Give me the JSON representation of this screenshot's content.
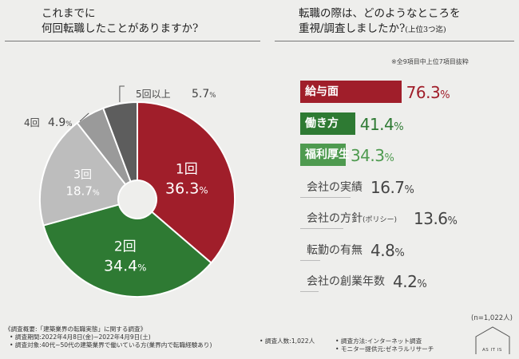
{
  "left_question": {
    "line1": "これまでに",
    "line2": "何回転職したことがありますか?"
  },
  "right_question": {
    "line1": "転職の際は、どのようなところを",
    "line2": "重視/調査しましたか?",
    "line2_small": "(上位3つ迄)"
  },
  "right_note": "※全9項目中上位7項目抜粋",
  "sample_note": "(n=1,022人)",
  "chart_data": [
    {
      "type": "pie",
      "title": "これまでに何回転職したことがありますか?",
      "categories": [
        "1回",
        "2回",
        "3回",
        "4回",
        "5回以上"
      ],
      "values": [
        36.3,
        34.4,
        18.7,
        4.9,
        5.7
      ],
      "value_labels": [
        "36.3",
        "34.4",
        "18.7",
        "4.9",
        "5.7"
      ],
      "unit": "%",
      "colors": [
        "#a01e2a",
        "#2e7a33",
        "#bdbdbd",
        "#9a9a9a",
        "#5d5d5d"
      ],
      "donut": true
    },
    {
      "type": "bar",
      "orientation": "horizontal",
      "title": "転職の際は、どのようなところを重視/調査しましたか?(上位3つ迄)",
      "categories": [
        "給与面",
        "働き方",
        "福利厚生",
        "会社の実績",
        "会社の方針",
        "転勤の有無",
        "会社の創業年数"
      ],
      "category_suffix": [
        "",
        "",
        "",
        "",
        "(ポリシー)",
        "",
        ""
      ],
      "values": [
        76.3,
        41.4,
        34.3,
        16.7,
        13.6,
        4.8,
        4.2
      ],
      "value_labels": [
        "76.3",
        "41.4",
        "34.3",
        "16.7",
        "13.6",
        "4.8",
        "4.2"
      ],
      "unit": "%",
      "colors": [
        "#a01e2a",
        "#2e7a33",
        "#4e9a4f",
        null,
        null,
        null,
        null
      ],
      "xlim": [
        0,
        100
      ]
    }
  ],
  "footer": {
    "line1": "《調査概要:「建築業界の転職実態」に関する調査》",
    "period": "• 調査期間:2022年4月8日(金)~2022年4月9日(土)",
    "target": "• 調査対象:40代~50代の建築業界で働いている方(業界内で転職経験あり)",
    "count": "• 調査人数:1,022人",
    "method": "• 調査方法:インターネット調査",
    "provider": "• モニター提供元:ゼネラルリサーチ"
  },
  "logo": {
    "text": "AS IT IS"
  },
  "colors": {
    "background": "#eeeeec",
    "red": "#a01e2a",
    "green": "#2e7a33",
    "light_green": "#4e9a4f"
  }
}
